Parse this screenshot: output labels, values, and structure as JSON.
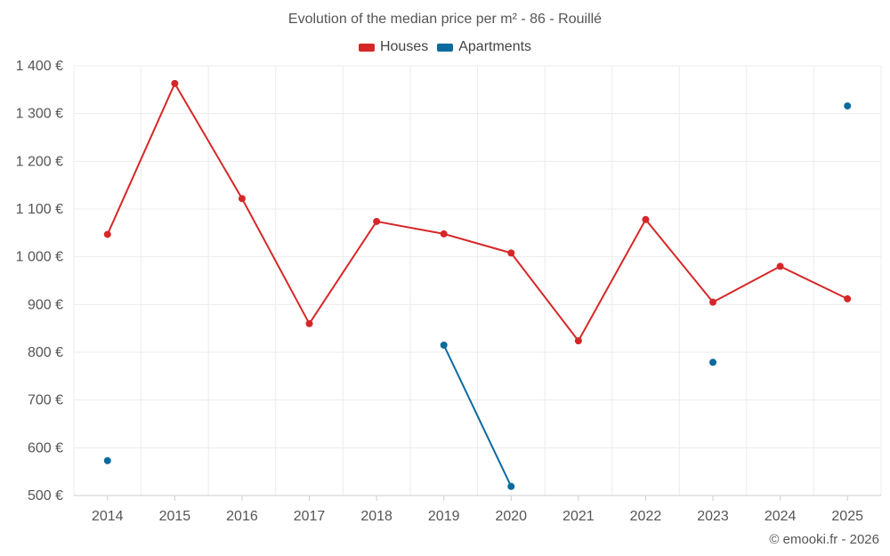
{
  "chart_data": {
    "type": "line",
    "title": "Evolution of the median price per m² - 86 - Rouillé",
    "xlabel": "",
    "ylabel": "",
    "categories": [
      "2014",
      "2015",
      "2016",
      "2017",
      "2018",
      "2019",
      "2020",
      "2021",
      "2022",
      "2023",
      "2024",
      "2025"
    ],
    "ylim": [
      500,
      1400
    ],
    "yticks": [
      500,
      600,
      700,
      800,
      900,
      1000,
      1100,
      1200,
      1300,
      1400
    ],
    "ytick_labels": [
      "500 €",
      "600 €",
      "700 €",
      "800 €",
      "900 €",
      "1 000 €",
      "1 100 €",
      "1 200 €",
      "1 300 €",
      "1 400 €"
    ],
    "grid": true,
    "legend_position": "top-center",
    "series": [
      {
        "name": "Houses",
        "color": "#d62728",
        "values": [
          1047,
          1363,
          1122,
          860,
          1074,
          1048,
          1008,
          824,
          1078,
          905,
          980,
          912
        ]
      },
      {
        "name": "Apartments",
        "color": "#0b6a9e",
        "values": [
          573,
          null,
          null,
          null,
          null,
          815,
          519,
          null,
          null,
          779,
          null,
          1316
        ]
      }
    ]
  },
  "credit": "© emooki.fr - 2026"
}
